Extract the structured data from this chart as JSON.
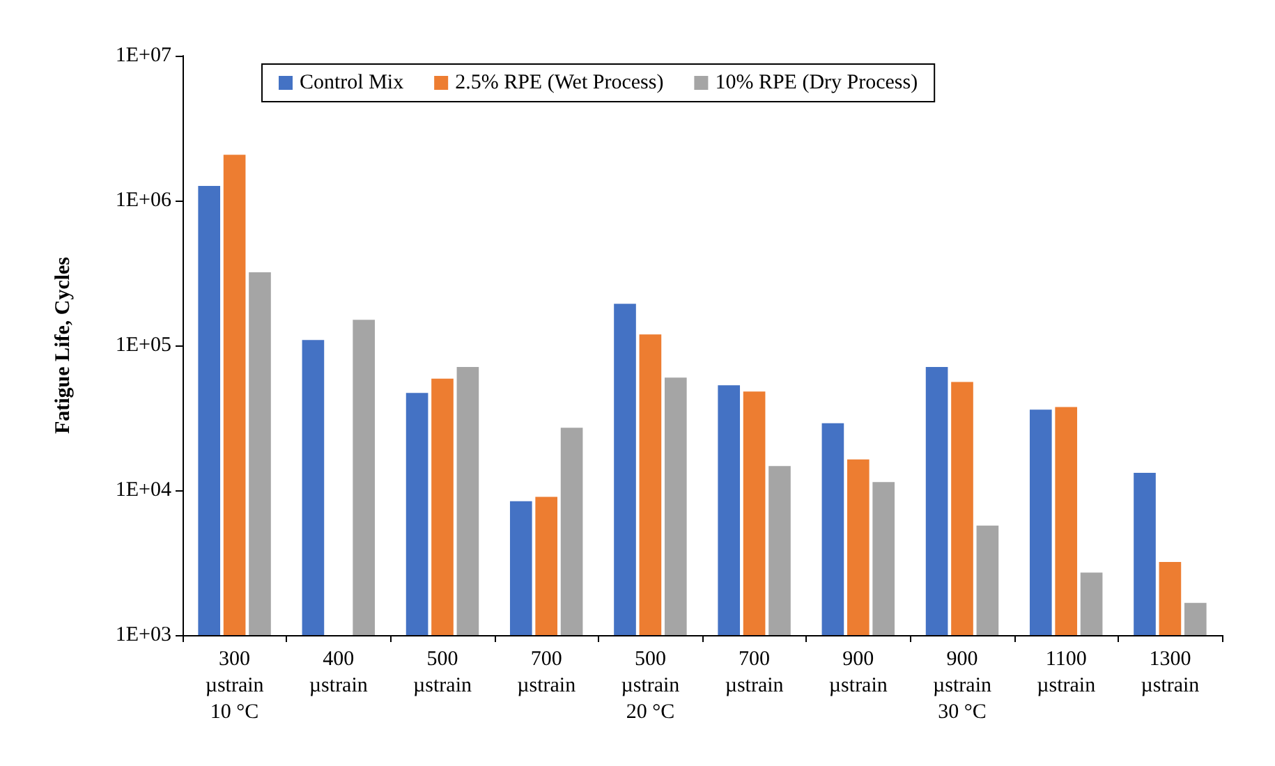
{
  "chart_data": {
    "type": "bar",
    "ylabel": "Fatigue Life, Cycles",
    "categories": [
      "300\nµstrain\n10 °C",
      "400\nµstrain",
      "500\nµstrain",
      "700\nµstrain",
      "500\nµstrain\n20 °C",
      "700\nµstrain",
      "900\nµstrain",
      "900\nµstrain\n30 °C",
      "1100\nµstrain",
      "1300\nµstrain"
    ],
    "series": [
      {
        "name": "Control Mix",
        "color": "#4472c4",
        "values": [
          1260000,
          109000,
          47000,
          8400,
          194000,
          53000,
          29000,
          71000,
          36000,
          13200
        ]
      },
      {
        "name": "2.5% RPE (Wet Process)",
        "color": "#ed7d31",
        "values": [
          2070000,
          null,
          59000,
          9000,
          119000,
          48000,
          16300,
          56000,
          37500,
          3200
        ]
      },
      {
        "name": "10% RPE (Dry Process)",
        "color": "#a5a5a5",
        "values": [
          320000,
          150000,
          71000,
          27000,
          60000,
          14700,
          11400,
          5700,
          2700,
          1670
        ]
      }
    ],
    "log": "y",
    "ylim": [
      1000,
      10000000
    ],
    "yticks": [
      {
        "value": 1000,
        "label": "1E+03"
      },
      {
        "value": 10000,
        "label": "1E+04"
      },
      {
        "value": 100000,
        "label": "1E+05"
      },
      {
        "value": 1000000,
        "label": "1E+06"
      },
      {
        "value": 10000000,
        "label": "1E+07"
      }
    ],
    "grid": false,
    "legend": "top"
  }
}
